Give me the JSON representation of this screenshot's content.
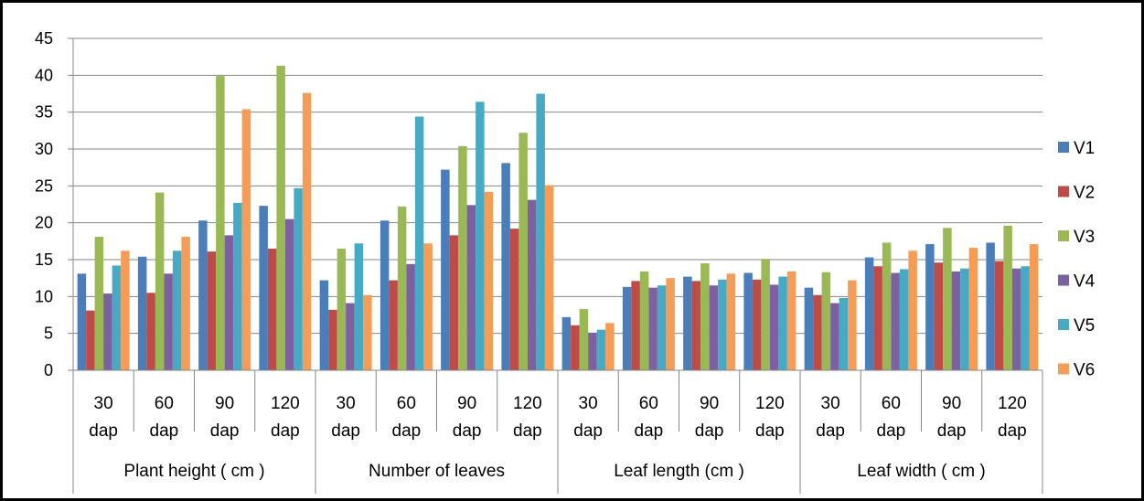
{
  "chart_data": {
    "type": "bar",
    "ylim": [
      0,
      45
    ],
    "yticks": [
      "0",
      "5",
      "10",
      "15",
      "20",
      "25",
      "30",
      "35",
      "40",
      "45"
    ],
    "grid": true,
    "legend_position": "right",
    "groups": [
      {
        "label": "Plant height ( cm )",
        "categories": [
          [
            "30",
            "dap"
          ],
          [
            "60",
            "dap"
          ],
          [
            "90",
            "dap"
          ],
          [
            "120",
            "dap"
          ]
        ]
      },
      {
        "label": "Number of leaves",
        "categories": [
          [
            "30",
            "dap"
          ],
          [
            "60",
            "dap"
          ],
          [
            "90",
            "dap"
          ],
          [
            "120",
            "dap"
          ]
        ]
      },
      {
        "label": "Leaf length (cm )",
        "categories": [
          [
            "30",
            "dap"
          ],
          [
            "60",
            "dap"
          ],
          [
            "90",
            "dap"
          ],
          [
            "120",
            "dap"
          ]
        ]
      },
      {
        "label": "Leaf width ( cm )",
        "categories": [
          [
            "30",
            "dap"
          ],
          [
            "60",
            "dap"
          ],
          [
            "90",
            "dap"
          ],
          [
            "120",
            "dap"
          ]
        ]
      }
    ],
    "series": [
      {
        "name": "V1",
        "color": "#4A7EBB",
        "values": [
          13.1,
          15.4,
          20.3,
          22.3,
          12.2,
          20.3,
          27.2,
          28.1,
          7.2,
          11.3,
          12.7,
          13.2,
          11.2,
          15.3,
          17.1,
          17.3
        ]
      },
      {
        "name": "V2",
        "color": "#BE4B48",
        "values": [
          8.1,
          10.5,
          16.1,
          16.5,
          8.2,
          12.2,
          18.3,
          19.2,
          6.1,
          12.1,
          12.1,
          12.3,
          10.2,
          14.1,
          14.6,
          14.8
        ]
      },
      {
        "name": "V3",
        "color": "#98B954",
        "values": [
          18.1,
          24.1,
          39.9,
          41.3,
          16.5,
          22.2,
          30.4,
          32.2,
          8.3,
          13.4,
          14.5,
          15.1,
          13.3,
          17.3,
          19.3,
          19.6
        ]
      },
      {
        "name": "V4",
        "color": "#7D60A0",
        "values": [
          10.4,
          13.1,
          18.3,
          20.5,
          9.1,
          14.4,
          22.4,
          23.1,
          5.1,
          11.2,
          11.5,
          11.6,
          9.1,
          13.2,
          13.4,
          13.8
        ]
      },
      {
        "name": "V5",
        "color": "#46AAC5",
        "values": [
          14.2,
          16.2,
          22.7,
          24.7,
          17.2,
          34.4,
          36.4,
          37.5,
          5.5,
          11.5,
          12.3,
          12.7,
          9.8,
          13.7,
          13.8,
          14.1
        ]
      },
      {
        "name": "V6",
        "color": "#F59D56",
        "values": [
          16.2,
          18.1,
          35.4,
          37.6,
          10.2,
          17.2,
          24.2,
          25.1,
          6.4,
          12.5,
          13.1,
          13.4,
          12.2,
          16.2,
          16.6,
          17.1
        ]
      }
    ]
  }
}
